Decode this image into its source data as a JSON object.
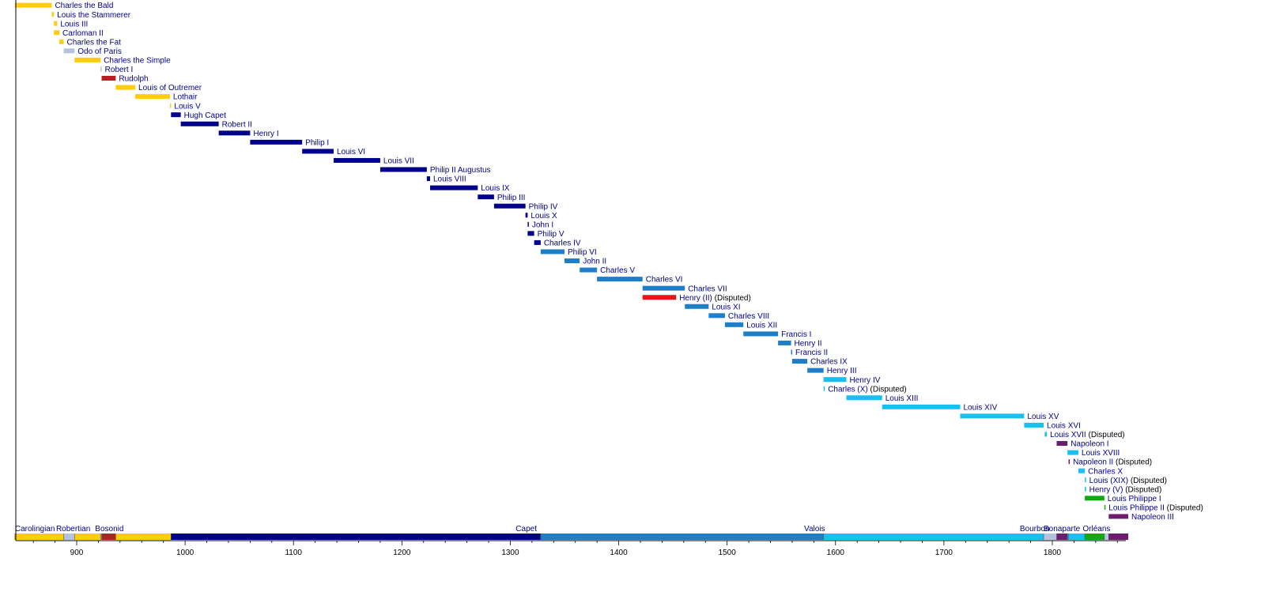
{
  "chart_data": {
    "type": "timeline",
    "x_range": [
      842,
      1874
    ],
    "x_ticks": [
      900,
      1000,
      1100,
      1200,
      1300,
      1400,
      1500,
      1600,
      1700,
      1800
    ],
    "colors": {
      "carolingian": "#ffcc11",
      "robertian": "#b0c4de",
      "bosonid": "#b22222",
      "capet": "#00008b",
      "valois": "#1e7fc8",
      "valois_disputed": "#e8161b",
      "bourbon": "#18bfef",
      "bonaparte": "#6e1c6e",
      "orleans": "#11aa11"
    },
    "reigns": [
      {
        "name": "Charles the Bald",
        "note": "",
        "start": 843,
        "end": 877,
        "dynasty": "carolingian"
      },
      {
        "name": "Louis the Stammerer",
        "note": "",
        "start": 877,
        "end": 879,
        "dynasty": "carolingian"
      },
      {
        "name": "Louis III",
        "note": "",
        "start": 879,
        "end": 882,
        "dynasty": "carolingian"
      },
      {
        "name": "Carloman II",
        "note": "",
        "start": 879,
        "end": 884,
        "dynasty": "carolingian"
      },
      {
        "name": "Charles the Fat",
        "note": "",
        "start": 884,
        "end": 888,
        "dynasty": "carolingian"
      },
      {
        "name": "Odo of Paris",
        "note": "",
        "start": 888,
        "end": 898,
        "dynasty": "robertian"
      },
      {
        "name": "Charles the Simple",
        "note": "",
        "start": 898,
        "end": 922,
        "dynasty": "carolingian"
      },
      {
        "name": "Robert I",
        "note": "",
        "start": 922,
        "end": 923,
        "dynasty": "robertian"
      },
      {
        "name": "Rudolph",
        "note": "",
        "start": 923,
        "end": 936,
        "dynasty": "bosonid"
      },
      {
        "name": "Louis of Outremer",
        "note": "",
        "start": 936,
        "end": 954,
        "dynasty": "carolingian"
      },
      {
        "name": "Lothair",
        "note": "",
        "start": 954,
        "end": 986,
        "dynasty": "carolingian"
      },
      {
        "name": "Louis V",
        "note": "",
        "start": 986,
        "end": 987,
        "dynasty": "carolingian"
      },
      {
        "name": "Hugh Capet",
        "note": "",
        "start": 987,
        "end": 996,
        "dynasty": "capet"
      },
      {
        "name": "Robert II",
        "note": "",
        "start": 996,
        "end": 1031,
        "dynasty": "capet"
      },
      {
        "name": "Henry I",
        "note": "",
        "start": 1031,
        "end": 1060,
        "dynasty": "capet"
      },
      {
        "name": "Philip I",
        "note": "",
        "start": 1060,
        "end": 1108,
        "dynasty": "capet"
      },
      {
        "name": "Louis VI",
        "note": "",
        "start": 1108,
        "end": 1137,
        "dynasty": "capet"
      },
      {
        "name": "Louis VII",
        "note": "",
        "start": 1137,
        "end": 1180,
        "dynasty": "capet"
      },
      {
        "name": "Philip II Augustus",
        "note": "",
        "start": 1180,
        "end": 1223,
        "dynasty": "capet"
      },
      {
        "name": "Louis VIII",
        "note": "",
        "start": 1223,
        "end": 1226,
        "dynasty": "capet"
      },
      {
        "name": "Louis IX",
        "note": "",
        "start": 1226,
        "end": 1270,
        "dynasty": "capet"
      },
      {
        "name": "Philip III",
        "note": "",
        "start": 1270,
        "end": 1285,
        "dynasty": "capet"
      },
      {
        "name": "Philip IV",
        "note": "",
        "start": 1285,
        "end": 1314,
        "dynasty": "capet"
      },
      {
        "name": "Louis X",
        "note": "",
        "start": 1314,
        "end": 1316,
        "dynasty": "capet"
      },
      {
        "name": "John I",
        "note": "",
        "start": 1316,
        "end": 1316.5,
        "dynasty": "capet"
      },
      {
        "name": "Philip V",
        "note": "",
        "start": 1316,
        "end": 1322,
        "dynasty": "capet"
      },
      {
        "name": "Charles IV",
        "note": "",
        "start": 1322,
        "end": 1328,
        "dynasty": "capet"
      },
      {
        "name": "Philip VI",
        "note": "",
        "start": 1328,
        "end": 1350,
        "dynasty": "valois"
      },
      {
        "name": "John II",
        "note": "",
        "start": 1350,
        "end": 1364,
        "dynasty": "valois"
      },
      {
        "name": "Charles V",
        "note": "",
        "start": 1364,
        "end": 1380,
        "dynasty": "valois"
      },
      {
        "name": "Charles VI",
        "note": "",
        "start": 1380,
        "end": 1422,
        "dynasty": "valois"
      },
      {
        "name": "Charles VII",
        "note": "",
        "start": 1422,
        "end": 1461,
        "dynasty": "valois"
      },
      {
        "name": "Henry (II)",
        "note": "(Disputed)",
        "start": 1422,
        "end": 1453,
        "dynasty": "valois_disputed"
      },
      {
        "name": "Louis XI",
        "note": "",
        "start": 1461,
        "end": 1483,
        "dynasty": "valois"
      },
      {
        "name": "Charles VIII",
        "note": "",
        "start": 1483,
        "end": 1498,
        "dynasty": "valois"
      },
      {
        "name": "Louis XII",
        "note": "",
        "start": 1498,
        "end": 1515,
        "dynasty": "valois"
      },
      {
        "name": "Francis I",
        "note": "",
        "start": 1515,
        "end": 1547,
        "dynasty": "valois"
      },
      {
        "name": "Henry II",
        "note": "",
        "start": 1547,
        "end": 1559,
        "dynasty": "valois"
      },
      {
        "name": "Francis II",
        "note": "",
        "start": 1559,
        "end": 1560,
        "dynasty": "valois"
      },
      {
        "name": "Charles IX",
        "note": "",
        "start": 1560,
        "end": 1574,
        "dynasty": "valois"
      },
      {
        "name": "Henry III",
        "note": "",
        "start": 1574,
        "end": 1589,
        "dynasty": "valois"
      },
      {
        "name": "Henry IV",
        "note": "",
        "start": 1589,
        "end": 1610,
        "dynasty": "bourbon"
      },
      {
        "name": "Charles (X)",
        "note": "(Disputed)",
        "start": 1589,
        "end": 1590,
        "dynasty": "bourbon"
      },
      {
        "name": "Louis XIII",
        "note": "",
        "start": 1610,
        "end": 1643,
        "dynasty": "bourbon"
      },
      {
        "name": "Louis XIV",
        "note": "",
        "start": 1643,
        "end": 1715,
        "dynasty": "bourbon"
      },
      {
        "name": "Louis XV",
        "note": "",
        "start": 1715,
        "end": 1774,
        "dynasty": "bourbon"
      },
      {
        "name": "Louis XVI",
        "note": "",
        "start": 1774,
        "end": 1792,
        "dynasty": "bourbon"
      },
      {
        "name": "Louis XVII",
        "note": "(Disputed)",
        "start": 1793,
        "end": 1795,
        "dynasty": "bourbon"
      },
      {
        "name": "Napoleon I",
        "note": "",
        "start": 1804,
        "end": 1814,
        "dynasty": "bonaparte"
      },
      {
        "name": "Louis XVIII",
        "note": "",
        "start": 1814,
        "end": 1824,
        "dynasty": "bourbon"
      },
      {
        "name": "Napoleon II",
        "note": "(Disputed)",
        "start": 1815,
        "end": 1815.5,
        "dynasty": "bonaparte"
      },
      {
        "name": "Charles X",
        "note": "",
        "start": 1824,
        "end": 1830,
        "dynasty": "bourbon"
      },
      {
        "name": "Louis (XIX)",
        "note": "(Disputed)",
        "start": 1830,
        "end": 1830.5,
        "dynasty": "bourbon"
      },
      {
        "name": "Henry (V)",
        "note": "(Disputed)",
        "start": 1830,
        "end": 1830.5,
        "dynasty": "bourbon"
      },
      {
        "name": "Louis Philippe I",
        "note": "",
        "start": 1830,
        "end": 1848,
        "dynasty": "orleans"
      },
      {
        "name": "Louis Philippe II",
        "note": "(Disputed)",
        "start": 1848,
        "end": 1848.5,
        "dynasty": "orleans"
      },
      {
        "name": "Napoleon III",
        "note": "",
        "start": 1852,
        "end": 1870,
        "dynasty": "bonaparte"
      }
    ],
    "dynasty_labels": [
      {
        "label": "Carolingian",
        "year": 843
      },
      {
        "label": "Robertian",
        "year": 881
      },
      {
        "label": "Bosonid",
        "year": 917
      },
      {
        "label": "Capet",
        "year": 1305
      },
      {
        "label": "Valois",
        "year": 1571
      },
      {
        "label": "Bourbon",
        "year": 1770
      },
      {
        "label": "Bonaparte",
        "year": 1792
      },
      {
        "label": "Orléans",
        "year": 1828
      }
    ],
    "dynasty_band": [
      {
        "start": 843,
        "end": 888,
        "dynasty": "carolingian"
      },
      {
        "start": 888,
        "end": 898,
        "dynasty": "robertian"
      },
      {
        "start": 898,
        "end": 922,
        "dynasty": "carolingian"
      },
      {
        "start": 922,
        "end": 923,
        "dynasty": "robertian"
      },
      {
        "start": 923,
        "end": 936,
        "dynasty": "bosonid"
      },
      {
        "start": 936,
        "end": 987,
        "dynasty": "carolingian"
      },
      {
        "start": 987,
        "end": 1328,
        "dynasty": "capet"
      },
      {
        "start": 1328,
        "end": 1589,
        "dynasty": "valois"
      },
      {
        "start": 1589,
        "end": 1792,
        "dynasty": "bourbon"
      },
      {
        "start": 1792,
        "end": 1804,
        "dynasty": "robertian"
      },
      {
        "start": 1804,
        "end": 1814,
        "dynasty": "bonaparte"
      },
      {
        "start": 1814,
        "end": 1815,
        "dynasty": "bourbon"
      },
      {
        "start": 1815,
        "end": 1830,
        "dynasty": "bourbon"
      },
      {
        "start": 1830,
        "end": 1848,
        "dynasty": "orleans"
      },
      {
        "start": 1848,
        "end": 1852,
        "dynasty": "robertian"
      },
      {
        "start": 1852,
        "end": 1870,
        "dynasty": "bonaparte"
      }
    ]
  }
}
